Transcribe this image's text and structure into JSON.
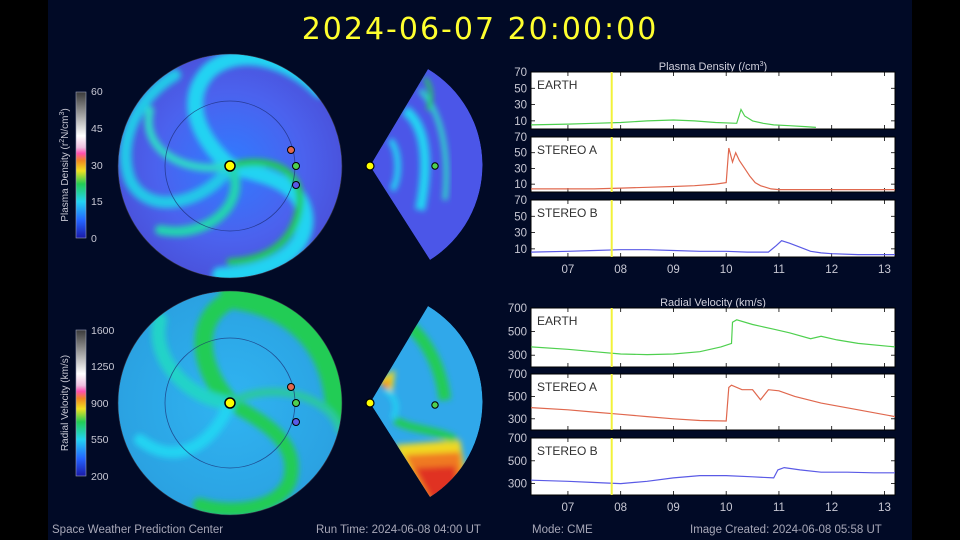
{
  "timestamp": "2024-06-07  20:00:00",
  "footer": {
    "organization": "Space Weather Prediction Center",
    "run_time": "Run Time: 2024-06-08 04:00 UT",
    "mode": "Mode: CME",
    "image_created": "Image Created: 2024-06-08 05:58 UT"
  },
  "colors": {
    "background": "#010a26",
    "timestamp": "#ffff2e",
    "time_marker": "#f2f23a",
    "earth": "#4fd04f",
    "stereo_a": "#e0684e",
    "stereo_b": "#5a5ae6",
    "sun": "#ffff00"
  },
  "colorbars": [
    {
      "label_prefix": "Plasma Density (r",
      "label_sup": "2",
      "label_suffix": "N/cm",
      "label_sup2": "3",
      "label_end": ")",
      "ticks": [
        "60",
        "45",
        "30",
        "15",
        "0"
      ]
    },
    {
      "label_prefix": "Radial Velocity (km/s)",
      "label_sup": "",
      "label_suffix": "",
      "label_sup2": "",
      "label_end": "",
      "ticks": [
        "1600",
        "1250",
        "900",
        "550",
        "200"
      ]
    }
  ],
  "chart_data": [
    {
      "type": "line",
      "title": "Plasma Density (/cm",
      "title_sup": "3",
      "title_end": ")",
      "xlabel": "",
      "ylabel": "",
      "xlim": [
        6.3,
        13.2
      ],
      "x_ticks": [
        "07",
        "08",
        "09",
        "10",
        "11",
        "12",
        "13"
      ],
      "x_tick_values": [
        7,
        8,
        9,
        10,
        11,
        12,
        13
      ],
      "time_marker_x": 7.83,
      "panels": [
        {
          "label": "EARTH",
          "color_key": "earth",
          "ylim": [
            0,
            70
          ],
          "y_ticks": [
            10,
            30,
            50,
            70
          ],
          "y_tick_labels": [
            "10",
            "30",
            "50",
            "70"
          ],
          "x": [
            6.3,
            7.0,
            7.5,
            8.0,
            8.5,
            9.0,
            9.4,
            9.8,
            10.2,
            10.28,
            10.35,
            10.5,
            10.7,
            10.9,
            11.2,
            11.5,
            11.7
          ],
          "y": [
            5,
            6,
            7,
            8,
            10,
            11,
            10,
            8,
            7,
            24,
            16,
            10,
            7,
            5,
            4,
            3,
            2
          ]
        },
        {
          "label": "STEREO A",
          "color_key": "stereo_a",
          "ylim": [
            0,
            70
          ],
          "y_ticks": [
            10,
            30,
            50,
            70
          ],
          "y_tick_labels": [
            "10",
            "30",
            "50",
            "70"
          ],
          "x": [
            6.3,
            7.0,
            7.5,
            8.0,
            8.5,
            9.0,
            9.4,
            9.8,
            10.0,
            10.05,
            10.12,
            10.18,
            10.25,
            10.35,
            10.45,
            10.55,
            10.65,
            10.75,
            10.85,
            11.0,
            11.5,
            12.0,
            13.2
          ],
          "y": [
            4,
            4,
            4,
            5,
            6,
            7,
            8,
            10,
            12,
            56,
            38,
            50,
            40,
            30,
            20,
            12,
            8,
            6,
            4,
            3,
            3,
            3,
            3
          ]
        },
        {
          "label": "STEREO B",
          "color_key": "stereo_b",
          "ylim": [
            0,
            70
          ],
          "y_ticks": [
            10,
            30,
            50,
            70
          ],
          "y_tick_labels": [
            "10",
            "30",
            "50",
            "70"
          ],
          "x": [
            6.3,
            7.0,
            7.5,
            8.0,
            8.5,
            9.0,
            9.5,
            10.0,
            10.4,
            10.8,
            10.95,
            11.05,
            11.2,
            11.4,
            11.6,
            11.8,
            12.0,
            12.5,
            13.2
          ],
          "y": [
            6,
            7,
            8,
            9,
            9,
            8,
            7,
            7,
            6,
            6,
            14,
            20,
            17,
            12,
            7,
            5,
            4,
            3,
            3
          ]
        }
      ]
    },
    {
      "type": "line",
      "title": "Radial Velocity (km/s)",
      "title_sup": "",
      "title_end": "",
      "xlabel": "",
      "ylabel": "",
      "xlim": [
        6.3,
        13.2
      ],
      "x_ticks": [
        "07",
        "08",
        "09",
        "10",
        "11",
        "12",
        "13"
      ],
      "x_tick_values": [
        7,
        8,
        9,
        10,
        11,
        12,
        13
      ],
      "time_marker_x": 7.83,
      "panels": [
        {
          "label": "EARTH",
          "color_key": "earth",
          "ylim": [
            200,
            700
          ],
          "y_ticks": [
            300,
            500,
            700
          ],
          "y_tick_labels": [
            "300",
            "500",
            "700"
          ],
          "x": [
            6.3,
            7.0,
            7.5,
            8.0,
            8.5,
            9.0,
            9.5,
            9.9,
            10.1,
            10.12,
            10.2,
            10.5,
            10.9,
            11.2,
            11.6,
            11.8,
            12.1,
            12.5,
            13.2
          ],
          "y": [
            370,
            350,
            330,
            310,
            305,
            310,
            330,
            370,
            400,
            580,
            600,
            560,
            520,
            490,
            440,
            460,
            430,
            400,
            370
          ]
        },
        {
          "label": "STEREO A",
          "color_key": "stereo_a",
          "ylim": [
            200,
            700
          ],
          "y_ticks": [
            300,
            500,
            700
          ],
          "y_tick_labels": [
            "300",
            "500",
            "700"
          ],
          "x": [
            6.3,
            7.0,
            7.5,
            8.0,
            8.5,
            9.0,
            9.5,
            10.0,
            10.05,
            10.1,
            10.3,
            10.5,
            10.65,
            10.8,
            11.0,
            11.3,
            11.8,
            12.5,
            13.2
          ],
          "y": [
            400,
            380,
            360,
            340,
            320,
            300,
            285,
            280,
            580,
            600,
            560,
            560,
            470,
            560,
            550,
            500,
            440,
            380,
            320
          ]
        },
        {
          "label": "STEREO B",
          "color_key": "stereo_b",
          "ylim": [
            200,
            700
          ],
          "y_ticks": [
            300,
            500,
            700
          ],
          "y_tick_labels": [
            "300",
            "500",
            "700"
          ],
          "x": [
            6.3,
            7.0,
            7.5,
            8.0,
            8.5,
            9.0,
            9.5,
            10.0,
            10.5,
            10.9,
            10.98,
            11.1,
            11.4,
            11.8,
            12.3,
            12.8,
            13.2
          ],
          "y": [
            330,
            320,
            310,
            300,
            320,
            350,
            370,
            370,
            360,
            350,
            420,
            440,
            420,
            400,
            400,
            395,
            395
          ]
        }
      ]
    }
  ]
}
